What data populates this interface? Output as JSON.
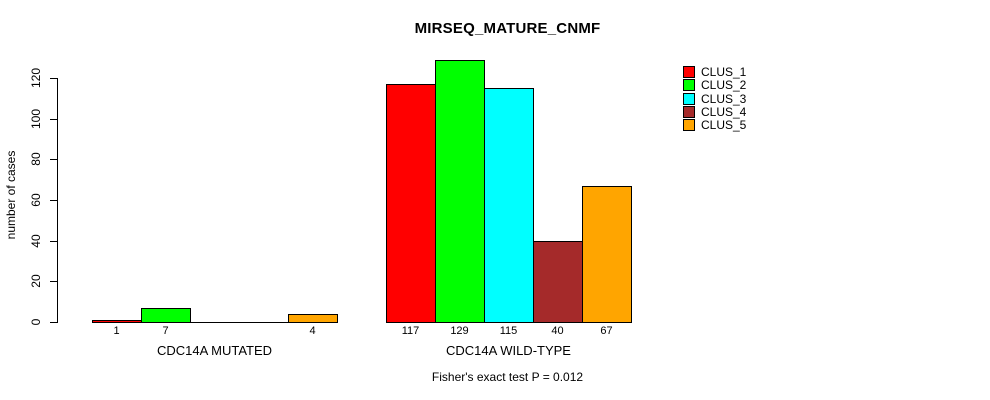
{
  "chart_data": {
    "type": "bar",
    "title": "MIRSEQ_MATURE_CNMF",
    "ylabel": "number of cases",
    "xlabel": "",
    "annotation": "Fisher's exact test P = 0.012",
    "categories": [
      "CDC14A MUTATED",
      "CDC14A WILD-TYPE"
    ],
    "series": [
      {
        "name": "CLUS_1",
        "color": "#ff0000",
        "values": [
          1,
          117
        ]
      },
      {
        "name": "CLUS_2",
        "color": "#00ff00",
        "values": [
          7,
          129
        ]
      },
      {
        "name": "CLUS_3",
        "color": "#00ffff",
        "values": [
          0,
          115
        ]
      },
      {
        "name": "CLUS_4",
        "color": "#a52a2a",
        "values": [
          0,
          40
        ]
      },
      {
        "name": "CLUS_5",
        "color": "#ffa500",
        "values": [
          4,
          67
        ]
      }
    ],
    "value_labels": [
      [
        "1",
        "7",
        "",
        "",
        "4"
      ],
      [
        "117",
        "129",
        "115",
        "40",
        "67"
      ]
    ],
    "yticks": [
      0,
      20,
      40,
      60,
      80,
      100,
      120
    ],
    "ylim": [
      0,
      130
    ],
    "grid": false,
    "legend": {
      "position": "top-right",
      "entries": [
        {
          "label": "CLUS_1",
          "color": "#ff0000"
        },
        {
          "label": "CLUS_2",
          "color": "#00ff00"
        },
        {
          "label": "CLUS_3",
          "color": "#00ffff"
        },
        {
          "label": "CLUS_4",
          "color": "#a52a2a"
        },
        {
          "label": "CLUS_5",
          "color": "#ffa500"
        }
      ]
    }
  }
}
